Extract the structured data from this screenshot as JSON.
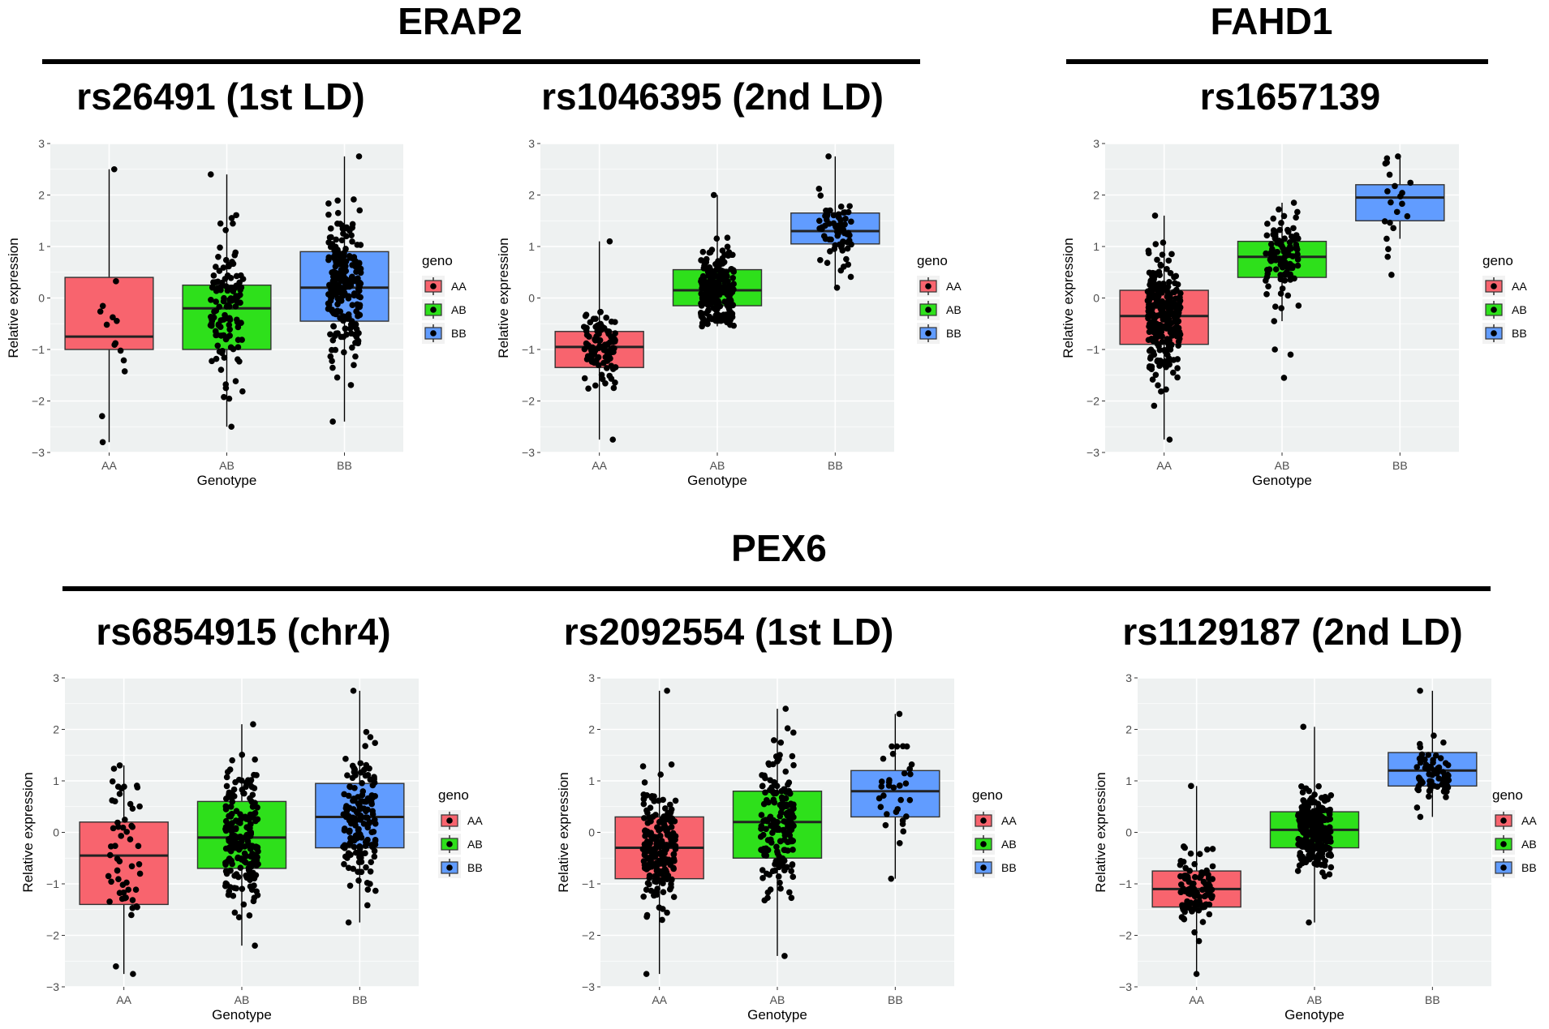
{
  "genes": [
    {
      "name": "ERAP2"
    },
    {
      "name": "FAHD1"
    },
    {
      "name": "PEX6"
    }
  ],
  "colors": {
    "AA": "#f8646e",
    "AB": "#2ee01b",
    "BB": "#619cff",
    "panel_bg": "#eef1f1",
    "point": "#000000"
  },
  "chart_data": [
    {
      "type": "box",
      "title": "rs26491 (1st LD)",
      "xlabel": "Genotype",
      "ylabel": "Relative expression",
      "categories": [
        "AA",
        "AB",
        "BB"
      ],
      "ylim": [
        -3,
        3
      ],
      "yticks": [
        -3,
        -2,
        -1,
        0,
        1,
        2,
        3
      ],
      "legend": {
        "title": "geno",
        "entries": [
          "AA",
          "AB",
          "BB"
        ],
        "placement": "right"
      },
      "boxes": [
        {
          "group": "AA",
          "min": -2.8,
          "q1": -1.0,
          "median": -0.75,
          "q3": 0.4,
          "max": 2.5,
          "n": 14,
          "outliers": []
        },
        {
          "group": "AB",
          "min": -2.5,
          "q1": -1.0,
          "median": -0.2,
          "q3": 0.25,
          "max": 2.4,
          "n": 120,
          "outliers": []
        },
        {
          "group": "BB",
          "min": -2.4,
          "q1": -0.45,
          "median": 0.2,
          "q3": 0.9,
          "max": 2.75,
          "n": 230,
          "outliers": []
        }
      ]
    },
    {
      "type": "box",
      "title": "rs1046395 (2nd LD)",
      "xlabel": "Genotype",
      "ylabel": "Relative expression",
      "categories": [
        "AA",
        "AB",
        "BB"
      ],
      "ylim": [
        -3,
        3
      ],
      "yticks": [
        -3,
        -2,
        -1,
        0,
        1,
        2,
        3
      ],
      "legend": {
        "title": "geno",
        "entries": [
          "AA",
          "AB",
          "BB"
        ],
        "placement": "right"
      },
      "boxes": [
        {
          "group": "AA",
          "min": -2.75,
          "q1": -1.35,
          "median": -0.95,
          "q3": -0.65,
          "max": 1.1,
          "n": 100,
          "outliers": []
        },
        {
          "group": "AB",
          "min": -0.55,
          "q1": -0.15,
          "median": 0.15,
          "q3": 0.55,
          "max": 2.0,
          "n": 230,
          "outliers": []
        },
        {
          "group": "BB",
          "min": 0.2,
          "q1": 1.05,
          "median": 1.3,
          "q3": 1.65,
          "max": 2.75,
          "n": 70,
          "outliers": []
        }
      ]
    },
    {
      "type": "box",
      "title": "rs1657139",
      "xlabel": "Genotype",
      "ylabel": "Relative expression",
      "categories": [
        "AA",
        "AB",
        "BB"
      ],
      "ylim": [
        -3,
        3
      ],
      "yticks": [
        -3,
        -2,
        -1,
        0,
        1,
        2,
        3
      ],
      "legend": {
        "title": "geno",
        "entries": [
          "AA",
          "AB",
          "BB"
        ],
        "placement": "right"
      },
      "boxes": [
        {
          "group": "AA",
          "min": -2.75,
          "q1": -0.9,
          "median": -0.35,
          "q3": 0.15,
          "max": 1.6,
          "n": 260,
          "outliers": []
        },
        {
          "group": "AB",
          "min": -0.45,
          "q1": 0.4,
          "median": 0.8,
          "q3": 1.1,
          "max": 1.85,
          "n": 110,
          "outliers": [
            -1.0,
            -1.1,
            -1.55
          ]
        },
        {
          "group": "BB",
          "min": 1.15,
          "q1": 1.5,
          "median": 1.95,
          "q3": 2.2,
          "max": 2.75,
          "n": 18,
          "outliers": [
            0.95,
            0.8,
            0.45
          ]
        }
      ]
    },
    {
      "type": "box",
      "title": "rs6854915 (chr4)",
      "xlabel": "Genotype",
      "ylabel": "Relative expression",
      "categories": [
        "AA",
        "AB",
        "BB"
      ],
      "ylim": [
        -3,
        3
      ],
      "yticks": [
        -3,
        -2,
        -1,
        0,
        1,
        2,
        3
      ],
      "legend": {
        "title": "geno",
        "entries": [
          "AA",
          "AB",
          "BB"
        ],
        "placement": "right"
      },
      "boxes": [
        {
          "group": "AA",
          "min": -2.75,
          "q1": -1.4,
          "median": -0.45,
          "q3": 0.2,
          "max": 1.3,
          "n": 55,
          "outliers": []
        },
        {
          "group": "AB",
          "min": -2.2,
          "q1": -0.7,
          "median": -0.1,
          "q3": 0.6,
          "max": 2.1,
          "n": 200,
          "outliers": []
        },
        {
          "group": "BB",
          "min": -1.75,
          "q1": -0.3,
          "median": 0.3,
          "q3": 0.95,
          "max": 2.75,
          "n": 150,
          "outliers": []
        }
      ]
    },
    {
      "type": "box",
      "title": "rs2092554 (1st LD)",
      "xlabel": "Genotype",
      "ylabel": "Relative expression",
      "categories": [
        "AA",
        "AB",
        "BB"
      ],
      "ylim": [
        -3,
        3
      ],
      "yticks": [
        -3,
        -2,
        -1,
        0,
        1,
        2,
        3
      ],
      "legend": {
        "title": "geno",
        "entries": [
          "AA",
          "AB",
          "BB"
        ],
        "placement": "right"
      },
      "boxes": [
        {
          "group": "AA",
          "min": -2.75,
          "q1": -0.9,
          "median": -0.3,
          "q3": 0.3,
          "max": 2.75,
          "n": 200,
          "outliers": []
        },
        {
          "group": "AB",
          "min": -2.4,
          "q1": -0.5,
          "median": 0.2,
          "q3": 0.8,
          "max": 2.4,
          "n": 170,
          "outliers": []
        },
        {
          "group": "BB",
          "min": -0.9,
          "q1": 0.3,
          "median": 0.8,
          "q3": 1.2,
          "max": 2.3,
          "n": 35,
          "outliers": []
        }
      ]
    },
    {
      "type": "box",
      "title": "rs1129187 (2nd LD)",
      "xlabel": "Genotype",
      "ylabel": "Relative expression",
      "categories": [
        "AA",
        "AB",
        "BB"
      ],
      "ylim": [
        -3,
        3
      ],
      "yticks": [
        -3,
        -2,
        -1,
        0,
        1,
        2,
        3
      ],
      "legend": {
        "title": "geno",
        "entries": [
          "AA",
          "AB",
          "BB"
        ],
        "placement": "right"
      },
      "boxes": [
        {
          "group": "AA",
          "min": -2.75,
          "q1": -1.45,
          "median": -1.1,
          "q3": -0.75,
          "max": 0.9,
          "n": 100,
          "outliers": []
        },
        {
          "group": "AB",
          "min": -1.75,
          "q1": -0.3,
          "median": 0.05,
          "q3": 0.4,
          "max": 2.05,
          "n": 230,
          "outliers": []
        },
        {
          "group": "BB",
          "min": 0.3,
          "q1": 0.9,
          "median": 1.2,
          "q3": 1.55,
          "max": 2.75,
          "n": 70,
          "outliers": []
        }
      ]
    }
  ]
}
